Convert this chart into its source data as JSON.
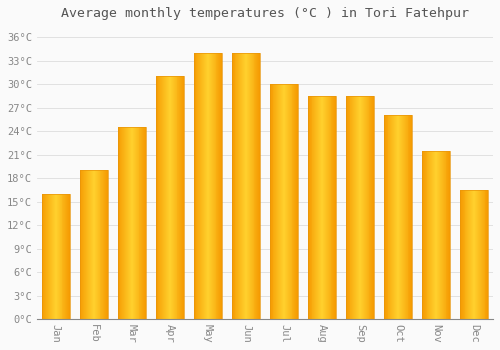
{
  "title": "Average monthly temperatures (°C ) in Tori Fatehpur",
  "months": [
    "Jan",
    "Feb",
    "Mar",
    "Apr",
    "May",
    "Jun",
    "Jul",
    "Aug",
    "Sep",
    "Oct",
    "Nov",
    "Dec"
  ],
  "values": [
    16,
    19,
    24.5,
    31,
    34,
    34,
    30,
    28.5,
    28.5,
    26,
    21.5,
    16.5
  ],
  "bar_color_center": "#FFB300",
  "bar_color_edge": "#F59B00",
  "bar_color_gradient_left": "#F59B00",
  "bar_color_gradient_right": "#F59B00",
  "bar_face_color": "#FFBE00",
  "background_color": "#FAFAFA",
  "grid_color": "#DDDDDD",
  "ytick_labels": [
    "0°C",
    "3°C",
    "6°C",
    "9°C",
    "12°C",
    "15°C",
    "18°C",
    "21°C",
    "24°C",
    "27°C",
    "30°C",
    "33°C",
    "36°C"
  ],
  "ytick_values": [
    0,
    3,
    6,
    9,
    12,
    15,
    18,
    21,
    24,
    27,
    30,
    33,
    36
  ],
  "ylim": [
    0,
    37.5
  ],
  "title_fontsize": 9.5,
  "tick_fontsize": 7.5,
  "font_family": "monospace",
  "tick_color": "#888888",
  "xaxis_label_rotation": 270
}
